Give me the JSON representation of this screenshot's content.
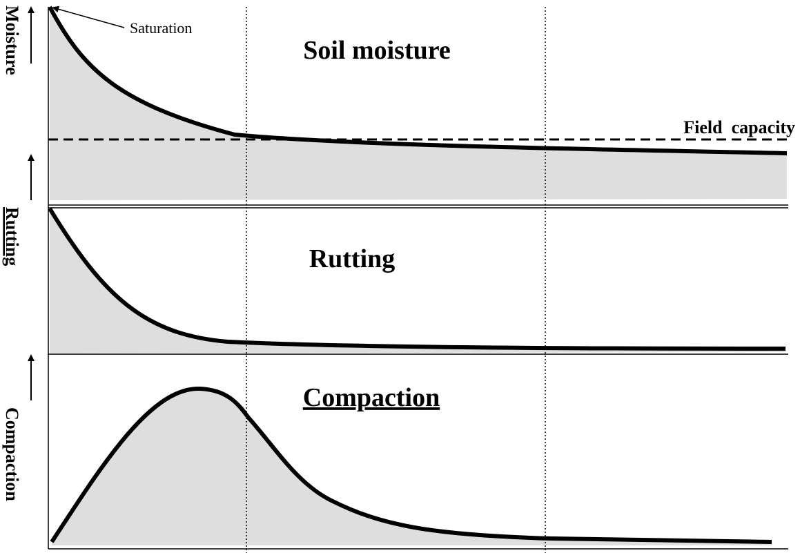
{
  "annotations": {
    "saturation": "Saturation",
    "field_capacity": "Field  capacity"
  },
  "panels": [
    {
      "title": "Soil moisture",
      "axis_label": "Moisture"
    },
    {
      "title": "Rutting",
      "axis_label": "Rutting"
    },
    {
      "title": "Compaction",
      "axis_label": "Compaction"
    }
  ]
}
